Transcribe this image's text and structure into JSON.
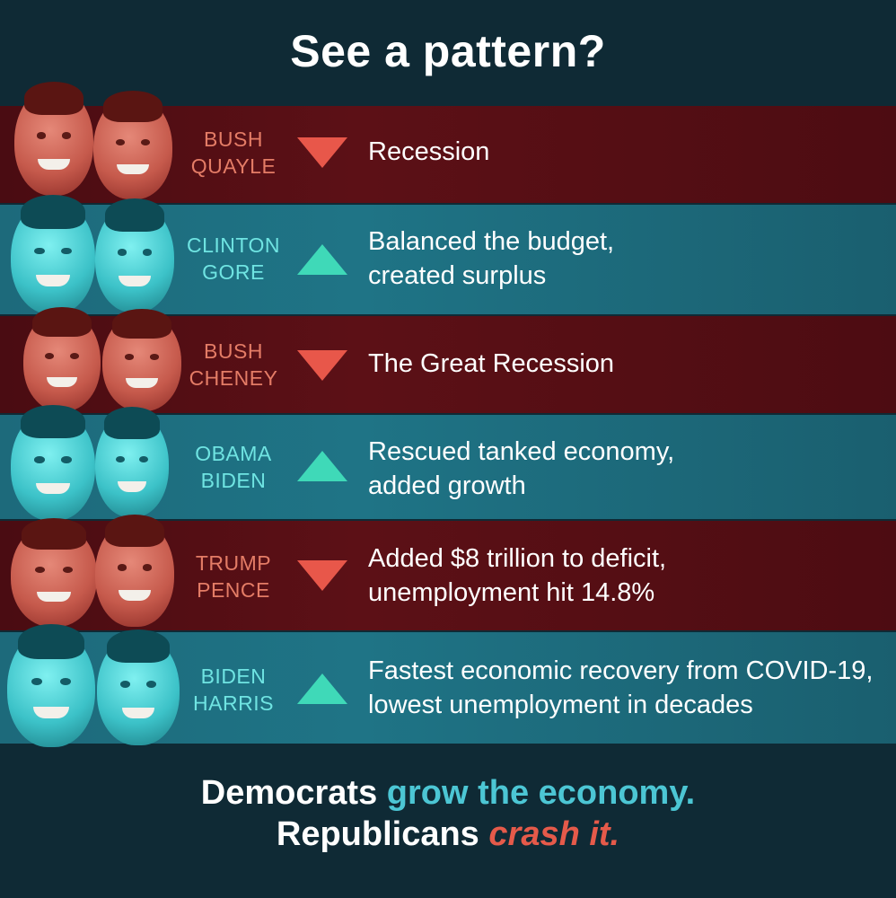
{
  "title": "See a pattern?",
  "rows": [
    {
      "party": "rep",
      "names": [
        "BUSH",
        "QUAYLE"
      ],
      "trend": "down",
      "lines": [
        "Recession"
      ]
    },
    {
      "party": "dem",
      "names": [
        "CLINTON",
        "GORE"
      ],
      "trend": "up",
      "lines": [
        "Balanced the budget,",
        "created surplus"
      ]
    },
    {
      "party": "rep",
      "names": [
        "BUSH",
        "CHENEY"
      ],
      "trend": "down",
      "lines": [
        "The Great Recession"
      ]
    },
    {
      "party": "dem",
      "names": [
        "OBAMA",
        "BIDEN"
      ],
      "trend": "up",
      "lines": [
        "Rescued tanked economy,",
        "added growth"
      ]
    },
    {
      "party": "rep",
      "names": [
        "TRUMP",
        "PENCE"
      ],
      "trend": "down",
      "lines": [
        "Added $8 trillion to deficit,",
        "unemployment hit 14.8%"
      ]
    },
    {
      "party": "dem",
      "names": [
        "BIDEN",
        "HARRIS"
      ],
      "trend": "up",
      "lines": [
        "Fastest economic recovery from COVID-19,",
        "lowest unemployment in decades"
      ]
    }
  ],
  "tagline": {
    "line1_a": "Democrats",
    "line1_b": "grow the economy.",
    "line2_a": "Republicans",
    "line2_b": "crash it."
  },
  "colors": {
    "rep_row": "#5c1016",
    "dem_row": "#1f7486",
    "down_arrow": "#e8574a",
    "up_arrow": "#3fd9b8"
  }
}
